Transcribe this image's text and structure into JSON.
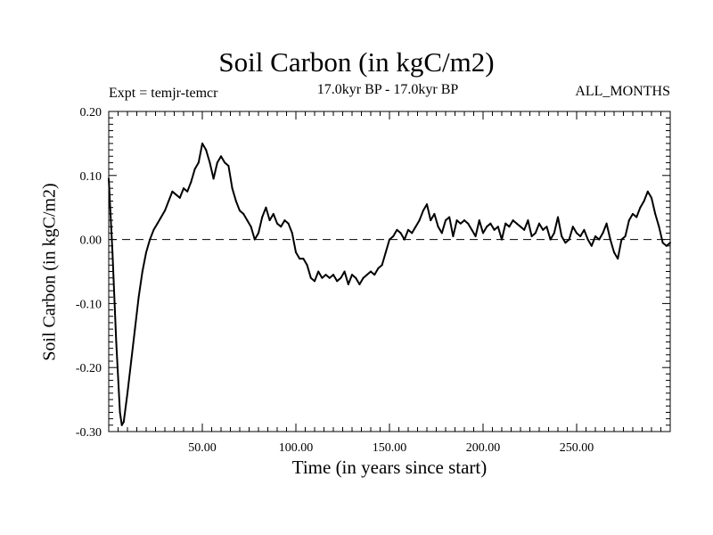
{
  "header": {
    "title": "Soil Carbon (in kgC/m2)",
    "expt": "Expt = temjr-temcr",
    "period": "17.0kyr BP - 17.0kyr BP",
    "months": "ALL_MONTHS"
  },
  "chart_data": {
    "type": "line",
    "title": "Soil Carbon (in kgC/m2)",
    "xlabel": "Time (in years since start)",
    "ylabel": "Soil Carbon (in kgC/m2)",
    "xlim": [
      0,
      300
    ],
    "ylim": [
      -0.3,
      0.2
    ],
    "xticks": [
      50,
      100,
      150,
      200,
      250
    ],
    "xtick_labels": [
      "50.00",
      "100.00",
      "150.00",
      "200.00",
      "250.00"
    ],
    "yticks": [
      -0.3,
      -0.2,
      -0.1,
      0.0,
      0.1,
      0.2
    ],
    "ytick_labels": [
      "-0.30",
      "-0.20",
      "-0.10",
      "0.00",
      "0.10",
      "0.20"
    ],
    "reference_line": {
      "y": 0.0,
      "style": "dashed"
    },
    "grid": false,
    "series": [
      {
        "name": "Soil Carbon",
        "x": [
          0,
          2,
          4,
          6,
          7,
          8,
          10,
          12,
          14,
          16,
          18,
          20,
          22,
          24,
          26,
          28,
          30,
          32,
          34,
          36,
          38,
          40,
          42,
          44,
          46,
          48,
          50,
          52,
          54,
          56,
          58,
          60,
          62,
          64,
          66,
          68,
          70,
          72,
          74,
          76,
          78,
          80,
          82,
          84,
          86,
          88,
          90,
          92,
          94,
          96,
          98,
          100,
          102,
          104,
          106,
          108,
          110,
          112,
          114,
          116,
          118,
          120,
          122,
          124,
          126,
          128,
          130,
          132,
          134,
          136,
          138,
          140,
          142,
          144,
          146,
          148,
          150,
          152,
          154,
          156,
          158,
          160,
          162,
          164,
          166,
          168,
          170,
          172,
          174,
          176,
          178,
          180,
          182,
          184,
          186,
          188,
          190,
          192,
          194,
          196,
          198,
          200,
          202,
          204,
          206,
          208,
          210,
          212,
          214,
          216,
          218,
          220,
          222,
          224,
          226,
          228,
          230,
          232,
          234,
          236,
          238,
          240,
          242,
          244,
          246,
          248,
          250,
          252,
          254,
          256,
          258,
          260,
          262,
          264,
          266,
          268,
          270,
          272,
          274,
          276,
          278,
          280,
          282,
          284,
          286,
          288,
          290,
          292,
          294,
          296,
          298,
          300
        ],
        "y": [
          0.095,
          -0.02,
          -0.16,
          -0.27,
          -0.29,
          -0.285,
          -0.24,
          -0.19,
          -0.14,
          -0.09,
          -0.05,
          -0.02,
          0.0,
          0.015,
          0.025,
          0.035,
          0.045,
          0.06,
          0.075,
          0.07,
          0.065,
          0.08,
          0.075,
          0.09,
          0.11,
          0.12,
          0.15,
          0.14,
          0.12,
          0.095,
          0.12,
          0.13,
          0.12,
          0.115,
          0.08,
          0.06,
          0.045,
          0.04,
          0.03,
          0.02,
          0.0,
          0.01,
          0.035,
          0.05,
          0.03,
          0.04,
          0.025,
          0.02,
          0.03,
          0.025,
          0.01,
          -0.02,
          -0.03,
          -0.03,
          -0.04,
          -0.06,
          -0.065,
          -0.05,
          -0.06,
          -0.055,
          -0.06,
          -0.055,
          -0.065,
          -0.06,
          -0.05,
          -0.07,
          -0.055,
          -0.06,
          -0.07,
          -0.06,
          -0.055,
          -0.05,
          -0.055,
          -0.045,
          -0.04,
          -0.02,
          0.0,
          0.005,
          0.015,
          0.01,
          0.0,
          0.015,
          0.01,
          0.02,
          0.03,
          0.045,
          0.055,
          0.03,
          0.04,
          0.02,
          0.01,
          0.03,
          0.035,
          0.005,
          0.03,
          0.025,
          0.03,
          0.025,
          0.015,
          0.005,
          0.03,
          0.01,
          0.02,
          0.025,
          0.015,
          0.02,
          0.0,
          0.025,
          0.02,
          0.03,
          0.025,
          0.02,
          0.015,
          0.03,
          0.005,
          0.01,
          0.025,
          0.015,
          0.02,
          0.0,
          0.01,
          0.035,
          0.005,
          -0.005,
          0.0,
          0.02,
          0.01,
          0.005,
          0.015,
          0.0,
          -0.01,
          0.005,
          0.0,
          0.01,
          0.025,
          0.0,
          -0.02,
          -0.03,
          0.0,
          0.005,
          0.03,
          0.04,
          0.035,
          0.05,
          0.06,
          0.075,
          0.065,
          0.04,
          0.02,
          -0.005,
          -0.01,
          -0.005
        ]
      }
    ]
  }
}
